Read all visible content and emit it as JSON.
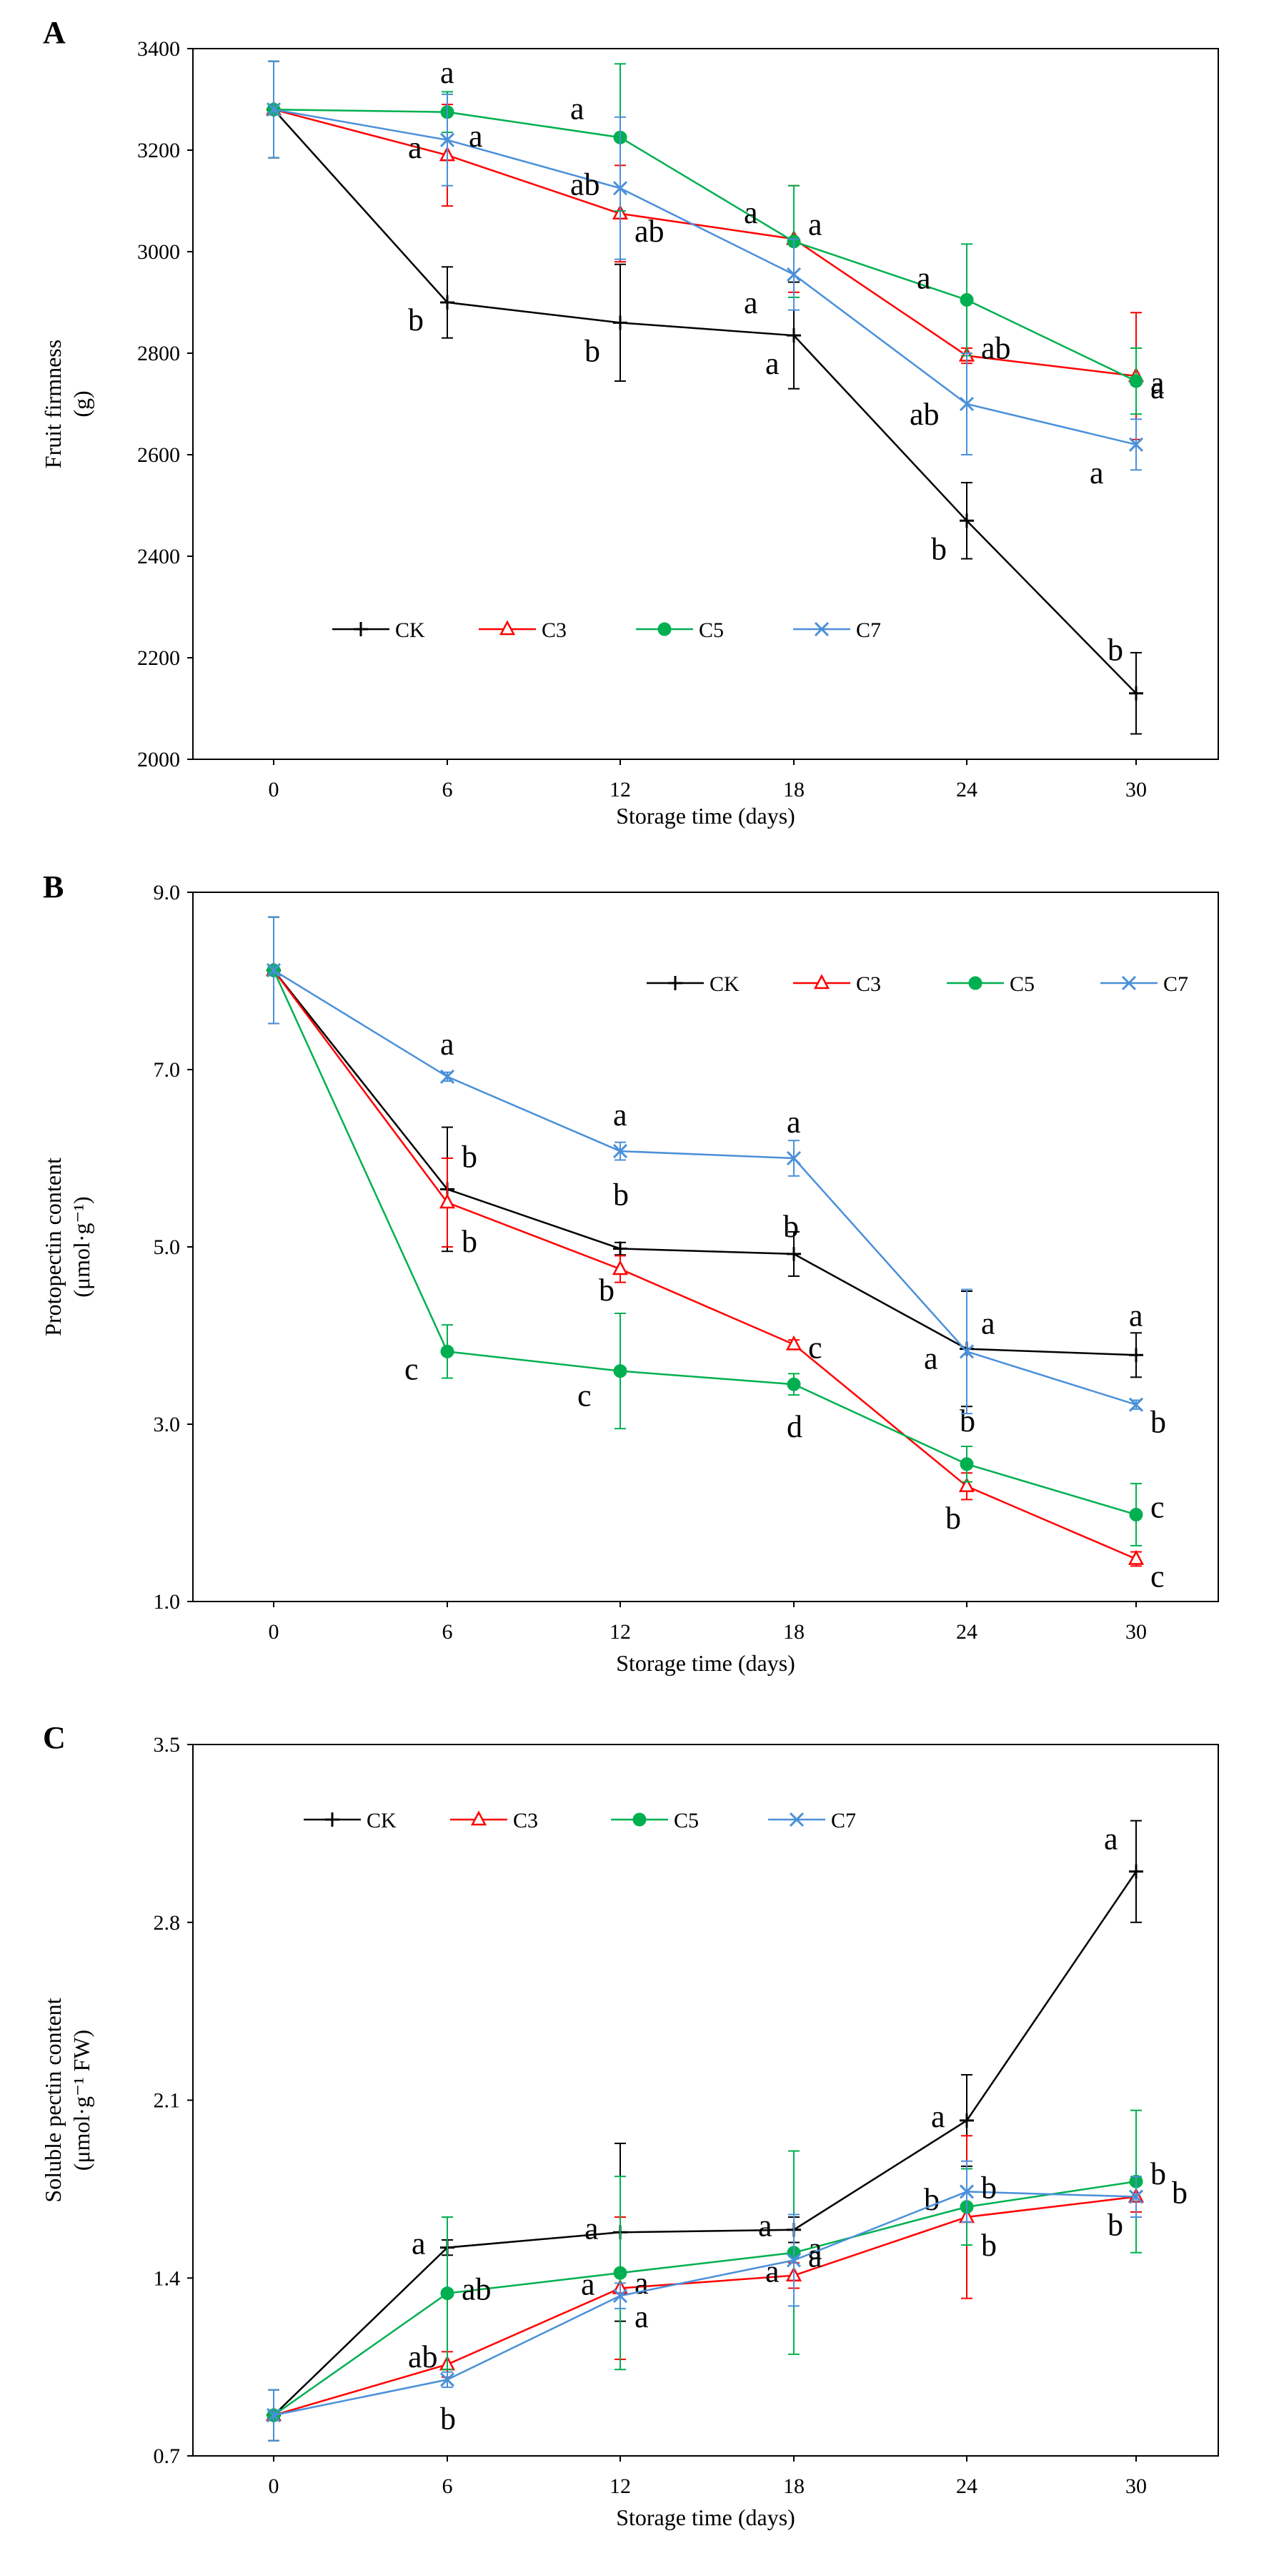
{
  "colors": {
    "CK": "#000000",
    "C3": "#ff0000",
    "C5": "#00b050",
    "C7": "#4a90d9"
  },
  "chart_data": [
    {
      "type": "line",
      "panel_label": "A",
      "ylabel_lines": [
        "Fruit firmness",
        "(g)"
      ],
      "xlabel": "Storage time (days)",
      "x": [
        "0",
        "6",
        "12",
        "18",
        "24",
        "30"
      ],
      "ylim": [
        2000,
        3400
      ],
      "yticks": [
        "2000",
        "2200",
        "2400",
        "2600",
        "2800",
        "3000",
        "3200",
        "3400"
      ],
      "legend": {
        "labels": [
          "CK",
          "C3",
          "C5",
          "C7"
        ],
        "position": "lower-left"
      },
      "series": [
        {
          "name": "CK",
          "marker": "plus",
          "values": [
            3280,
            2900,
            2860,
            2835,
            2470,
            2130
          ],
          "errors": [
            95,
            70,
            115,
            105,
            75,
            80
          ],
          "letters": [
            "",
            "b",
            "b",
            "a",
            "b",
            "b"
          ]
        },
        {
          "name": "C3",
          "marker": "triangle",
          "values": [
            3280,
            3190,
            3075,
            3025,
            2795,
            2755
          ],
          "errors": [
            95,
            100,
            95,
            105,
            15,
            125
          ],
          "letters": [
            "",
            "a",
            "ab",
            "a",
            "ab",
            "a"
          ]
        },
        {
          "name": "C5",
          "marker": "circle",
          "values": [
            3280,
            3275,
            3225,
            3020,
            2905,
            2745
          ],
          "errors": [
            95,
            40,
            145,
            110,
            110,
            65
          ],
          "letters": [
            "",
            "a",
            "a",
            "a",
            "a",
            "a"
          ]
        },
        {
          "name": "C7",
          "marker": "x",
          "values": [
            3280,
            3220,
            3125,
            2955,
            2700,
            2620
          ],
          "errors": [
            95,
            90,
            140,
            70,
            100,
            50
          ],
          "letters": [
            "",
            "a",
            "ab",
            "a",
            "ab",
            "a"
          ]
        }
      ]
    },
    {
      "type": "line",
      "panel_label": "B",
      "ylabel_lines": [
        "Protopectin content",
        "(μmol·g⁻¹)"
      ],
      "xlabel": "Storage time  (days)",
      "x": [
        "0",
        "6",
        "12",
        "18",
        "24",
        "30"
      ],
      "ylim": [
        1.0,
        9.0
      ],
      "yticks": [
        "1.0",
        "3.0",
        "5.0",
        "7.0",
        "9.0"
      ],
      "legend": {
        "labels": [
          "CK",
          "C3",
          "C5",
          "C7"
        ],
        "position": "top-right"
      },
      "series": [
        {
          "name": "CK",
          "marker": "plus",
          "values": [
            8.12,
            5.65,
            4.98,
            4.92,
            3.85,
            3.78
          ],
          "errors": [
            0.6,
            0.7,
            0.07,
            0.25,
            0.65,
            0.25
          ],
          "letters": [
            "",
            "b",
            "b",
            "b",
            "a",
            "a"
          ]
        },
        {
          "name": "C3",
          "marker": "triangle",
          "values": [
            8.12,
            5.5,
            4.75,
            3.9,
            2.3,
            1.48
          ],
          "errors": [
            0.6,
            0.5,
            0.15,
            0.05,
            0.15,
            0.08
          ],
          "letters": [
            "",
            "b",
            "b",
            "c",
            "b",
            "c"
          ]
        },
        {
          "name": "C5",
          "marker": "circle",
          "values": [
            8.12,
            3.82,
            3.6,
            3.45,
            2.55,
            1.98
          ],
          "errors": [
            0.6,
            0.3,
            0.65,
            0.12,
            0.2,
            0.35
          ],
          "letters": [
            "",
            "c",
            "c",
            "d",
            "b",
            "c"
          ]
        },
        {
          "name": "C7",
          "marker": "x",
          "values": [
            8.12,
            6.92,
            6.08,
            6.0,
            3.82,
            3.22
          ],
          "errors": [
            0.6,
            0.05,
            0.1,
            0.2,
            0.7,
            0.05
          ],
          "letters": [
            "",
            "a",
            "a",
            "a",
            "a",
            "b"
          ]
        }
      ]
    },
    {
      "type": "line",
      "panel_label": "C",
      "ylabel_lines": [
        "Soluble pectin content",
        "(μmol·g⁻¹ FW)"
      ],
      "xlabel": "Storage time (days)",
      "x": [
        "0",
        "6",
        "12",
        "18",
        "24",
        "30"
      ],
      "ylim": [
        0.7,
        3.5
      ],
      "yticks": [
        "0.7",
        "1.4",
        "2.1",
        "2.8",
        "3.5"
      ],
      "legend": {
        "labels": [
          "CK",
          "C3",
          "C5",
          "C7"
        ],
        "position": "top-left"
      },
      "series": [
        {
          "name": "CK",
          "marker": "plus",
          "values": [
            0.86,
            1.52,
            1.58,
            1.59,
            2.02,
            3.0
          ],
          "errors": [
            0.1,
            0.03,
            0.35,
            0.05,
            0.18,
            0.2
          ],
          "letters": [
            "",
            "a",
            "a",
            "a",
            "a",
            "a"
          ]
        },
        {
          "name": "C3",
          "marker": "triangle",
          "values": [
            0.86,
            1.06,
            1.36,
            1.41,
            1.64,
            1.72
          ],
          "errors": [
            0.1,
            0.05,
            0.28,
            0.05,
            0.32,
            0.06
          ],
          "letters": [
            "",
            "ab",
            "a",
            "a",
            "b",
            "b"
          ]
        },
        {
          "name": "C5",
          "marker": "circle",
          "values": [
            0.86,
            1.34,
            1.42,
            1.5,
            1.68,
            1.78
          ],
          "errors": [
            0.1,
            0.3,
            0.38,
            0.4,
            0.15,
            0.28
          ],
          "letters": [
            "",
            "ab",
            "a",
            "a",
            "b",
            "b"
          ]
        },
        {
          "name": "C7",
          "marker": "x",
          "values": [
            0.86,
            1.0,
            1.33,
            1.47,
            1.74,
            1.72
          ],
          "errors": [
            0.1,
            0.03,
            0.05,
            0.18,
            0.12,
            0.08
          ],
          "letters": [
            "",
            "b",
            "a",
            "a",
            "b",
            "b"
          ]
        }
      ]
    }
  ]
}
